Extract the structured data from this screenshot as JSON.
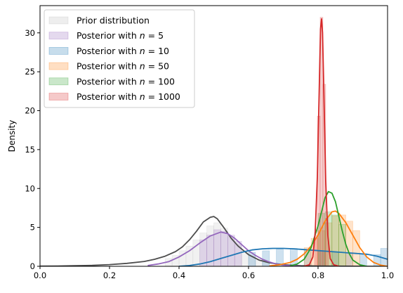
{
  "chart_data": {
    "type": "area",
    "title": "",
    "xlabel": "",
    "ylabel": "Density",
    "xlim": [
      0.0,
      1.0
    ],
    "ylim": [
      0,
      33.5
    ],
    "x_ticks": [
      "0.0",
      "0.2",
      "0.4",
      "0.6",
      "0.8",
      "1.0"
    ],
    "x_tick_values": [
      0.0,
      0.2,
      0.4,
      0.6,
      0.8,
      1.0
    ],
    "y_ticks": [
      "0",
      "5",
      "10",
      "15",
      "20",
      "25",
      "30"
    ],
    "y_tick_values": [
      0,
      5,
      10,
      15,
      20,
      25,
      30
    ],
    "grid": false,
    "legend_position": "top-left",
    "series": [
      {
        "name": "Prior distribution",
        "legend_prefix": "Prior distribution",
        "legend_n": "",
        "hist_color": "#bdbdbd",
        "line_color": "#4d4d4d",
        "kde_x": [
          0.0,
          0.05,
          0.1,
          0.15,
          0.2,
          0.25,
          0.3,
          0.33,
          0.36,
          0.39,
          0.41,
          0.43,
          0.45,
          0.47,
          0.49,
          0.5,
          0.51,
          0.53,
          0.55,
          0.57,
          0.6,
          0.63,
          0.66,
          0.7,
          0.75,
          0.8,
          0.85,
          0.9,
          0.95,
          1.0
        ],
        "kde_y": [
          0.02,
          0.04,
          0.07,
          0.12,
          0.22,
          0.38,
          0.62,
          0.9,
          1.3,
          1.9,
          2.5,
          3.4,
          4.5,
          5.7,
          6.3,
          6.4,
          6.1,
          4.9,
          3.6,
          2.6,
          1.5,
          0.8,
          0.45,
          0.2,
          0.08,
          0.04,
          0.02,
          0.01,
          0.0,
          0.0
        ],
        "bins_x": [
          0.36,
          0.38,
          0.4,
          0.42,
          0.44,
          0.46,
          0.48,
          0.5,
          0.52,
          0.54,
          0.56,
          0.58,
          0.6,
          0.62,
          0.64
        ],
        "bins_h": [
          1.0,
          1.4,
          2.0,
          2.6,
          3.4,
          4.3,
          5.2,
          5.6,
          4.9,
          3.8,
          2.8,
          2.0,
          1.3,
          0.8,
          0.5
        ],
        "bin_width": 0.02
      },
      {
        "name": "Posterior with n = 5",
        "legend_prefix": "Posterior with ",
        "legend_n": "5",
        "hist_color": "#9467bd",
        "line_color": "#9467bd",
        "kde_x": [
          0.31,
          0.34,
          0.37,
          0.4,
          0.43,
          0.46,
          0.49,
          0.52,
          0.54,
          0.56,
          0.58,
          0.6,
          0.62,
          0.64,
          0.66,
          0.68,
          0.7,
          0.72,
          0.75
        ],
        "kde_y": [
          0.1,
          0.3,
          0.6,
          1.2,
          2.0,
          3.0,
          3.9,
          4.4,
          4.2,
          3.6,
          2.8,
          2.0,
          1.4,
          0.9,
          0.55,
          0.3,
          0.15,
          0.06,
          0.0
        ],
        "bins_x": [
          0.46,
          0.48,
          0.5,
          0.52,
          0.54,
          0.56
        ],
        "bins_h": [
          3.4,
          4.0,
          4.7,
          4.5,
          4.0,
          3.2
        ],
        "bin_width": 0.02
      },
      {
        "name": "Posterior with n = 10",
        "legend_prefix": "Posterior with ",
        "legend_n": "10",
        "hist_color": "#1f77b4",
        "line_color": "#1f77b4",
        "kde_x": [
          0.4,
          0.43,
          0.46,
          0.49,
          0.52,
          0.55,
          0.58,
          0.61,
          0.64,
          0.67,
          0.7,
          0.73,
          0.76,
          0.79,
          0.82,
          0.85,
          0.88,
          0.91,
          0.94,
          0.97,
          1.0
        ],
        "kde_y": [
          0.0,
          0.1,
          0.3,
          0.6,
          1.0,
          1.4,
          1.8,
          2.1,
          2.25,
          2.3,
          2.3,
          2.25,
          2.15,
          2.05,
          1.95,
          1.85,
          1.75,
          1.65,
          1.55,
          1.3,
          0.9
        ],
        "bins_x": [
          0.6,
          0.64,
          0.68,
          0.72,
          0.76,
          0.8,
          0.84,
          0.88,
          0.92,
          0.96,
          0.98
        ],
        "bins_h": [
          1.8,
          2.0,
          2.2,
          2.3,
          2.2,
          2.0,
          1.8,
          1.7,
          1.6,
          1.5,
          2.3
        ],
        "bin_width": 0.02
      },
      {
        "name": "Posterior with n = 50",
        "legend_prefix": "Posterior with ",
        "legend_n": "50",
        "hist_color": "#ff7f0e",
        "line_color": "#ff7f0e",
        "kde_x": [
          0.66,
          0.69,
          0.72,
          0.74,
          0.76,
          0.78,
          0.8,
          0.82,
          0.84,
          0.85,
          0.86,
          0.88,
          0.9,
          0.92,
          0.94,
          0.96,
          0.98,
          1.0
        ],
        "kde_y": [
          0.05,
          0.2,
          0.5,
          0.9,
          1.6,
          2.6,
          4.0,
          5.8,
          7.0,
          7.1,
          6.8,
          5.6,
          4.0,
          2.4,
          1.2,
          0.5,
          0.15,
          0.0
        ],
        "bins_x": [
          0.76,
          0.78,
          0.8,
          0.82,
          0.84,
          0.86,
          0.88,
          0.9
        ],
        "bins_h": [
          2.4,
          3.6,
          4.6,
          5.6,
          6.5,
          6.6,
          5.8,
          4.6
        ],
        "bin_width": 0.02
      },
      {
        "name": "Posterior with n = 100",
        "legend_prefix": "Posterior with ",
        "legend_n": "100",
        "hist_color": "#2ca02c",
        "line_color": "#2ca02c",
        "kde_x": [
          0.72,
          0.74,
          0.76,
          0.78,
          0.8,
          0.81,
          0.82,
          0.83,
          0.84,
          0.85,
          0.86,
          0.87,
          0.88,
          0.89,
          0.9,
          0.92,
          0.94
        ],
        "kde_y": [
          0.05,
          0.3,
          0.9,
          2.4,
          5.2,
          7.0,
          8.8,
          9.6,
          9.4,
          8.3,
          6.4,
          4.5,
          2.8,
          1.6,
          0.8,
          0.2,
          0.0
        ],
        "bins_x": [
          0.8,
          0.82,
          0.84,
          0.86
        ],
        "bins_h": [
          6.8,
          7.0,
          6.6,
          5.4
        ],
        "bin_width": 0.02
      },
      {
        "name": "Posterior with n = 1000",
        "legend_prefix": "Posterior with ",
        "legend_n": "1000",
        "hist_color": "#d62728",
        "line_color": "#d62728",
        "kde_x": [
          0.76,
          0.775,
          0.785,
          0.792,
          0.798,
          0.803,
          0.807,
          0.81,
          0.813,
          0.817,
          0.822,
          0.828,
          0.835,
          0.845,
          0.86
        ],
        "kde_y": [
          0.0,
          0.2,
          1.2,
          4.5,
          11.5,
          22.0,
          30.5,
          31.8,
          30.0,
          22.0,
          11.0,
          4.0,
          1.0,
          0.2,
          0.0
        ],
        "bins_x": [
          0.79,
          0.798,
          0.806,
          0.814,
          0.822
        ],
        "bins_h": [
          4.0,
          19.3,
          32.0,
          23.4,
          6.2
        ],
        "bin_width": 0.008
      }
    ]
  }
}
